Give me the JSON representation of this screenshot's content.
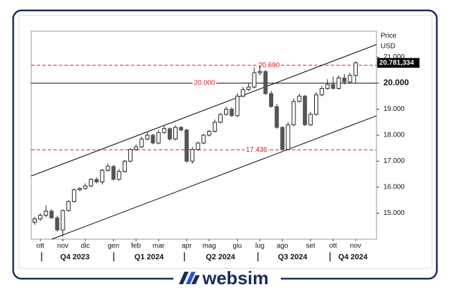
{
  "chart_data": {
    "type": "candlestick",
    "price_label": "Price",
    "currency_label": "USD",
    "categories": [
      null,
      "ott",
      null,
      null,
      null,
      "nov",
      null,
      null,
      null,
      "dic",
      null,
      null,
      null,
      null,
      "gen",
      null,
      null,
      null,
      "feb",
      null,
      null,
      null,
      "mar",
      null,
      null,
      null,
      null,
      "apr",
      null,
      null,
      null,
      "mag",
      null,
      null,
      null,
      null,
      "giu",
      null,
      null,
      null,
      "lug",
      null,
      null,
      null,
      "ago",
      null,
      null,
      null,
      null,
      "set",
      null,
      null,
      null,
      "ott",
      null,
      null,
      null,
      "nov"
    ],
    "quarters": [
      "Q4 2023",
      "Q1 2024",
      "Q2 2024",
      "Q3 2024",
      "Q4 2024"
    ],
    "open": [
      14650,
      14780,
      14920,
      15080,
      14820,
      14350,
      15100,
      15450,
      15900,
      15950,
      16050,
      16300,
      16200,
      16650,
      16800,
      16300,
      16600,
      17000,
      17450,
      17550,
      17850,
      18000,
      17700,
      18100,
      18250,
      17850,
      18300,
      18200,
      17000,
      17450,
      17700,
      18000,
      18150,
      18500,
      18800,
      19000,
      18750,
      19500,
      19750,
      19850,
      20400,
      20450,
      19600,
      19100,
      18300,
      17450,
      18400,
      19300,
      19500,
      18400,
      18800,
      19550,
      19800,
      19950,
      19800,
      20200,
      20050,
      20300
    ],
    "high": [
      14860,
      15000,
      15300,
      15150,
      14900,
      15150,
      15500,
      15950,
      16000,
      16150,
      16350,
      16380,
      16700,
      16900,
      16850,
      16700,
      17050,
      17500,
      17650,
      17950,
      18100,
      18050,
      18200,
      18350,
      18300,
      18380,
      18350,
      18250,
      17550,
      17750,
      18050,
      18200,
      18600,
      18850,
      19100,
      19080,
      19600,
      19850,
      20000,
      20600,
      20690,
      20500,
      19700,
      19200,
      18350,
      18500,
      19400,
      19600,
      19550,
      18900,
      19650,
      19900,
      20150,
      20250,
      20300,
      20350,
      20400,
      20840
    ],
    "low": [
      14550,
      14700,
      14850,
      14780,
      14300,
      14100,
      15050,
      15400,
      15850,
      15900,
      16000,
      16150,
      16100,
      16600,
      16250,
      16250,
      16550,
      16950,
      17400,
      17500,
      17800,
      17650,
      17650,
      18050,
      17800,
      17800,
      18150,
      16950,
      16900,
      17400,
      17650,
      17950,
      18100,
      18450,
      18750,
      18700,
      18700,
      19450,
      19700,
      19800,
      20300,
      19550,
      19050,
      18250,
      17436,
      17440,
      18350,
      19250,
      18350,
      18350,
      18750,
      19500,
      19750,
      19750,
      19750,
      19950,
      19980,
      20000
    ],
    "close": [
      14780,
      14920,
      15080,
      14820,
      14350,
      15100,
      15450,
      15900,
      15950,
      16050,
      16300,
      16200,
      16650,
      16800,
      16300,
      16600,
      17000,
      17450,
      17550,
      17850,
      18000,
      17700,
      18100,
      18250,
      17850,
      18300,
      18200,
      17000,
      17450,
      17700,
      18000,
      18150,
      18500,
      18800,
      19000,
      18750,
      19500,
      19750,
      19850,
      20400,
      20450,
      19600,
      19100,
      18300,
      17450,
      18400,
      19300,
      19500,
      18400,
      18800,
      19550,
      19800,
      19950,
      19800,
      20200,
      20050,
      20300,
      20781.334
    ],
    "up_color": "#ffffff",
    "down_color": "#555555",
    "ylim": [
      14000,
      22000
    ],
    "yticks": [
      {
        "value": 15000,
        "label": "15.000"
      },
      {
        "value": 16000,
        "label": "16.000"
      },
      {
        "value": 17000,
        "label": "17.000"
      },
      {
        "value": 18000,
        "label": "18.000"
      },
      {
        "value": 19000,
        "label": "19.000"
      },
      {
        "value": 20000,
        "label": "20.000"
      },
      {
        "value": 21000,
        "label": "21.000"
      }
    ],
    "reference_lines": [
      {
        "value": 20000,
        "label": "20.000",
        "style": "solid"
      },
      {
        "value": 20690,
        "label": "20.690",
        "style": "dashed"
      },
      {
        "value": 17436,
        "label": "17.436",
        "style": "dashed"
      }
    ],
    "trendlines": [
      {
        "start_index": 0,
        "start_value": 16480,
        "end_index": 57,
        "end_value": 21180
      },
      {
        "start_index": 0,
        "start_value": 13750,
        "end_index": 57,
        "end_value": 18440
      }
    ],
    "last_price": {
      "value": 20781.334,
      "label": "20.781,334"
    }
  },
  "brand": "websim"
}
